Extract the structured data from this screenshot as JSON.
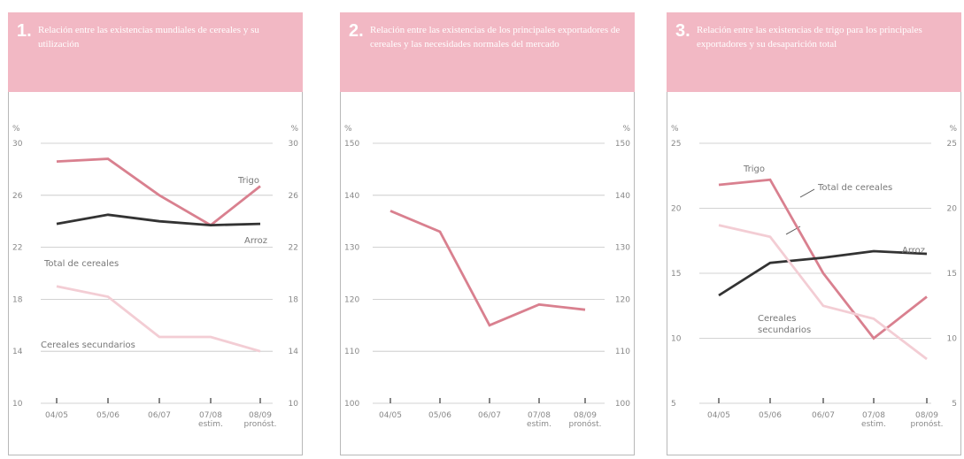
{
  "panels": [
    {
      "number": "1.",
      "title": "Relación entre las existencias mundiales de cereales y su utilización"
    },
    {
      "number": "2.",
      "title": "Relación entre las existencias de los principales exportadores de cereales y las necesidades normales del mercado"
    },
    {
      "number": "3.",
      "title": "Relación entre las existencias de trigo para los principales exportadores y su desaparición total"
    }
  ],
  "chart_data": [
    {
      "type": "line",
      "ylabel": "%",
      "ylim": [
        10,
        30
      ],
      "yticks": [
        "10",
        "14",
        "18",
        "22",
        "26",
        "30"
      ],
      "categories": [
        "04/05",
        "05/06",
        "06/07",
        "07/08 estim.",
        "08/09 pronóst."
      ],
      "series": [
        {
          "name": "Trigo",
          "color": "#d9808f",
          "values": [
            28.6,
            28.8,
            26.0,
            23.7,
            26.7
          ]
        },
        {
          "name": "Arroz",
          "color": "#333333",
          "values": [
            23.8,
            24.5,
            24.0,
            23.7,
            23.8
          ]
        },
        {
          "name": "Total de cereales",
          "color": "#d9808f",
          "values": [
            null,
            null,
            null,
            null,
            null
          ]
        },
        {
          "name": "Cereales secundarios",
          "color": "#f3cdd4",
          "values": [
            19.0,
            18.2,
            15.1,
            15.1,
            14.0
          ]
        }
      ]
    },
    {
      "type": "line",
      "ylabel": "%",
      "ylim": [
        100,
        150
      ],
      "yticks": [
        "100",
        "110",
        "120",
        "130",
        "140",
        "150"
      ],
      "categories": [
        "04/05",
        "05/06",
        "06/07",
        "07/08 estim.",
        "08/09 pronóst."
      ],
      "series": [
        {
          "name": "",
          "color": "#d9808f",
          "values": [
            137,
            133,
            115,
            119,
            118
          ]
        }
      ]
    },
    {
      "type": "line",
      "ylabel": "%",
      "ylim": [
        5,
        25
      ],
      "yticks": [
        "5",
        "10",
        "15",
        "20",
        "25"
      ],
      "categories": [
        "04/05",
        "05/06",
        "06/07",
        "07/08 estim.",
        "08/09 pronóst."
      ],
      "series": [
        {
          "name": "Trigo",
          "color": "#d9808f",
          "values": [
            21.8,
            22.2,
            15.0,
            10.0,
            13.2
          ]
        },
        {
          "name": "Total de cereales",
          "color": "#d9808f",
          "values": [
            null,
            null,
            null,
            null,
            null
          ]
        },
        {
          "name": "Arroz",
          "color": "#333333",
          "values": [
            13.3,
            15.8,
            16.2,
            16.7,
            16.5
          ]
        },
        {
          "name": "Cereales secundarios",
          "color": "#f3cdd4",
          "values": [
            18.7,
            17.8,
            12.5,
            11.5,
            8.4
          ]
        }
      ]
    }
  ],
  "labels": {
    "p1_trigo": "Trigo",
    "p1_arroz": "Arroz",
    "p1_total": "Total de cereales",
    "p1_secundarios": "Cereales secundarios",
    "p3_trigo": "Trigo",
    "p3_total": "Total de cereales",
    "p3_arroz": "Arroz",
    "p3_secundarios_1": "Cereales",
    "p3_secundarios_2": "secundarios"
  }
}
